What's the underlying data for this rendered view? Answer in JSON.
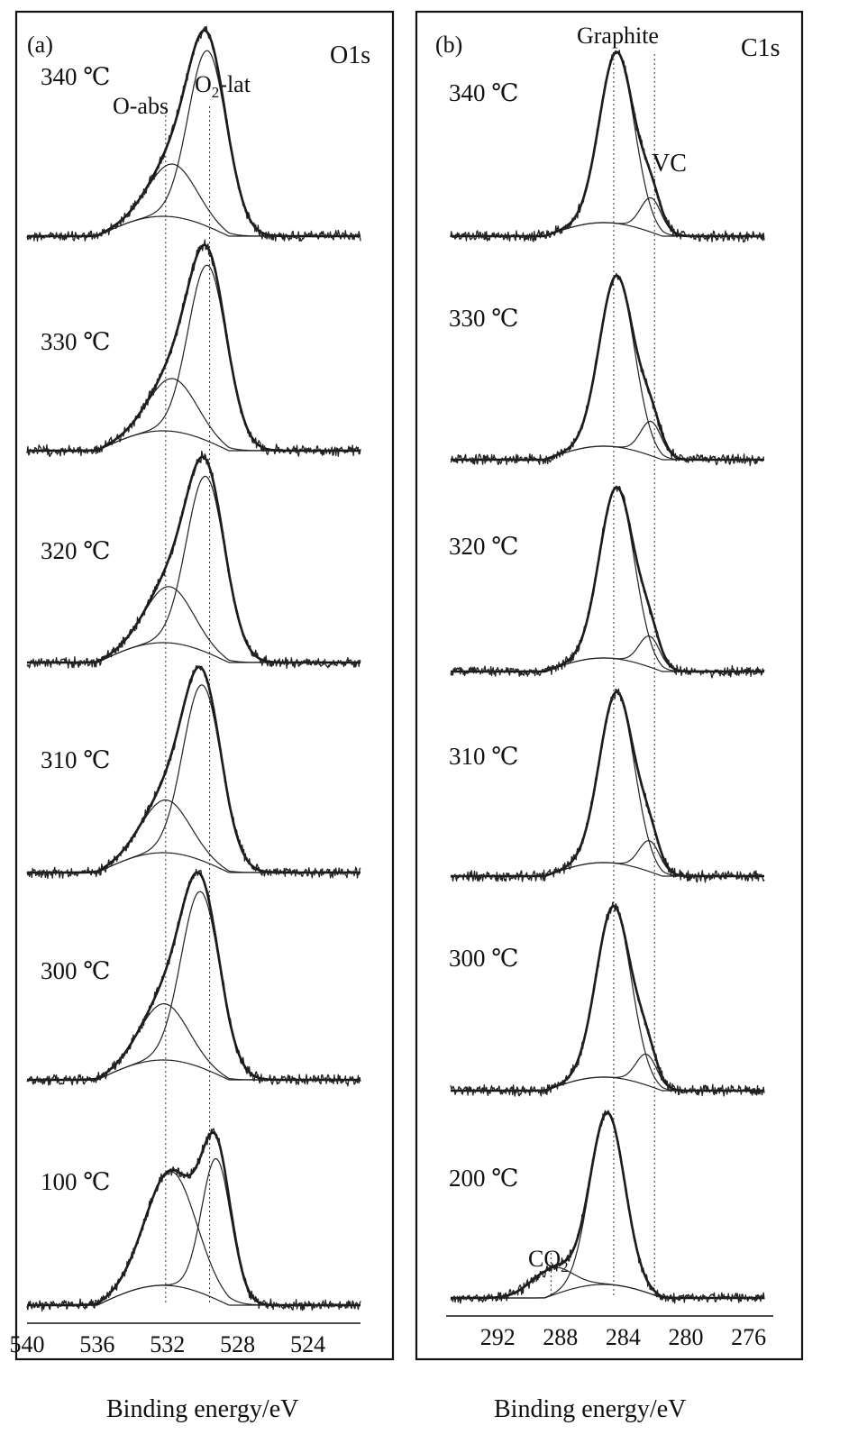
{
  "chart_data": [
    {
      "type": "line",
      "panel_label": "(a)",
      "title": "O1s",
      "xlabel": "Binding energy/eV",
      "xlim": [
        540,
        521
      ],
      "x_ticks": [
        540,
        536,
        532,
        528,
        524
      ],
      "annotations": [
        "O-abs",
        "O2-lat"
      ],
      "reference_lines": [
        532.1,
        529.6
      ],
      "series": [
        {
          "name": "340 ℃",
          "peaks": [
            {
              "label": "O-abs",
              "center": 531.7,
              "height": 0.3,
              "width": 1.6
            },
            {
              "label": "O2-lat",
              "center": 529.7,
              "height": 1.0,
              "width": 1.3
            }
          ]
        },
        {
          "name": "330 ℃",
          "peaks": [
            {
              "label": "O-abs",
              "center": 531.7,
              "height": 0.3,
              "width": 1.6
            },
            {
              "label": "O2-lat",
              "center": 529.7,
              "height": 1.0,
              "width": 1.3
            }
          ]
        },
        {
          "name": "320 ℃",
          "peaks": [
            {
              "label": "O-abs",
              "center": 531.9,
              "height": 0.32,
              "width": 1.6
            },
            {
              "label": "O2-lat",
              "center": 529.8,
              "height": 1.0,
              "width": 1.3
            }
          ]
        },
        {
          "name": "310 ℃",
          "peaks": [
            {
              "label": "O-abs",
              "center": 532.1,
              "height": 0.3,
              "width": 1.6
            },
            {
              "label": "O2-lat",
              "center": 530.0,
              "height": 1.0,
              "width": 1.3
            }
          ]
        },
        {
          "name": "300 ℃",
          "peaks": [
            {
              "label": "O-abs",
              "center": 532.2,
              "height": 0.32,
              "width": 1.6
            },
            {
              "label": "O2-lat",
              "center": 530.1,
              "height": 1.0,
              "width": 1.3
            }
          ]
        },
        {
          "name": "100 ℃",
          "peaks": [
            {
              "label": "O-abs",
              "center": 531.8,
              "height": 0.65,
              "width": 1.7
            },
            {
              "label": "O2-lat",
              "center": 529.2,
              "height": 0.8,
              "width": 1.0
            }
          ]
        }
      ]
    },
    {
      "type": "line",
      "panel_label": "(b)",
      "title": "C1s",
      "xlabel": "Binding energy/eV",
      "xlim": [
        295,
        275
      ],
      "x_ticks": [
        292,
        288,
        284,
        280,
        276
      ],
      "annotations": [
        "Graphite",
        "VC",
        "CO2"
      ],
      "reference_lines": [
        284.6,
        282.0,
        288.6
      ],
      "series": [
        {
          "name": "340 ℃",
          "peaks": [
            {
              "label": "Graphite",
              "center": 284.4,
              "height": 1.0,
              "width": 1.3
            },
            {
              "label": "VC",
              "center": 282.2,
              "height": 0.2,
              "width": 0.8
            }
          ]
        },
        {
          "name": "330 ℃",
          "peaks": [
            {
              "label": "Graphite",
              "center": 284.4,
              "height": 1.0,
              "width": 1.3
            },
            {
              "label": "VC",
              "center": 282.2,
              "height": 0.2,
              "width": 0.8
            }
          ]
        },
        {
          "name": "320 ℃",
          "peaks": [
            {
              "label": "Graphite",
              "center": 284.4,
              "height": 1.0,
              "width": 1.3
            },
            {
              "label": "VC",
              "center": 282.3,
              "height": 0.18,
              "width": 0.8
            }
          ]
        },
        {
          "name": "310 ℃",
          "peaks": [
            {
              "label": "Graphite",
              "center": 284.4,
              "height": 1.0,
              "width": 1.3
            },
            {
              "label": "VC",
              "center": 282.3,
              "height": 0.18,
              "width": 0.8
            }
          ]
        },
        {
          "name": "300 ℃",
          "peaks": [
            {
              "label": "Graphite",
              "center": 284.6,
              "height": 1.0,
              "width": 1.3
            },
            {
              "label": "VC",
              "center": 282.5,
              "height": 0.18,
              "width": 0.8
            }
          ]
        },
        {
          "name": "200 ℃",
          "peaks": [
            {
              "label": "Graphite",
              "center": 285.0,
              "height": 1.0,
              "width": 1.3
            },
            {
              "label": "CO2",
              "center": 288.6,
              "height": 0.16,
              "width": 1.5
            }
          ]
        }
      ]
    }
  ]
}
